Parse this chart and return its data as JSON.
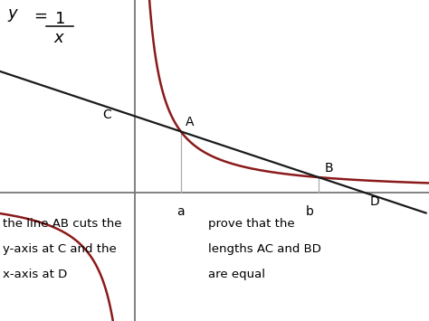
{
  "background_color": "#ffffff",
  "curve_color": "#8b1a1a",
  "line_color": "#1a1a1a",
  "axis_color": "#777777",
  "vline_color": "#aaaaaa",
  "point_a_x": 0.75,
  "point_b_x": 3.0,
  "x_min": -2.2,
  "x_max": 4.8,
  "y_min": -2.8,
  "y_max": 4.2,
  "label_a": "A",
  "label_b": "B",
  "label_c": "C",
  "label_d": "D",
  "label_small_a": "a",
  "label_small_b": "b",
  "left_text_line1": "the line AB cuts the",
  "left_text_line2": "y-axis at C and the",
  "left_text_line3": "x-axis at D",
  "right_text_line1": "prove that the",
  "right_text_line2": "lengths AC and BD",
  "right_text_line3": "are equal",
  "label_fontsize": 10,
  "text_fontsize": 9.5
}
